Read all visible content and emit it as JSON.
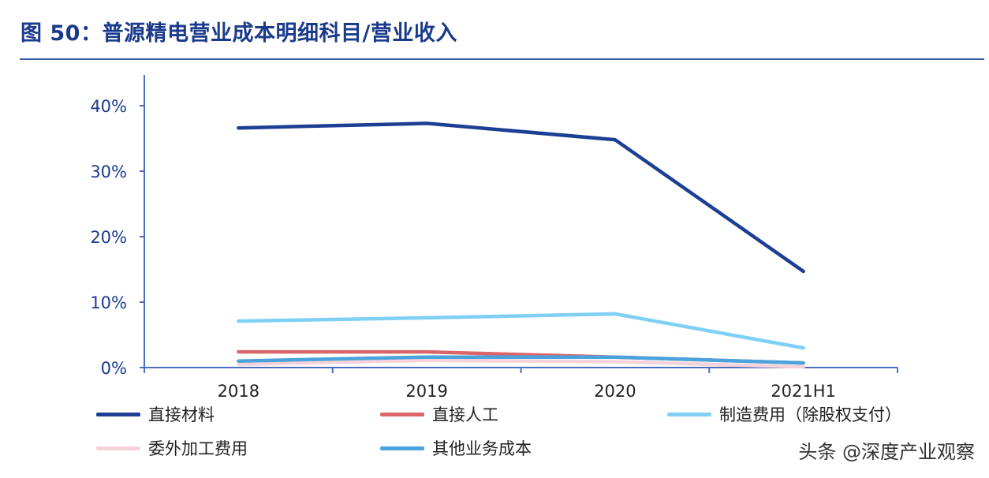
{
  "title": "图 50：普源精电营业成本明细科目/营业收入",
  "watermark": "头条 @深度产业观察",
  "chart_data": {
    "type": "line",
    "title": "图 50：普源精电营业成本明细科目/营业收入",
    "categories": [
      "2018",
      "2019",
      "2020",
      "2021H1"
    ],
    "ylim": [
      0,
      40
    ],
    "yticks": [
      "0%",
      "10%",
      "20%",
      "30%",
      "40%"
    ],
    "yunit": "%",
    "grid": false,
    "legend_placement": "bottom",
    "series": [
      {
        "name": "直接材料",
        "color": "#1c3f94",
        "values": [
          36.6,
          37.3,
          34.8,
          14.7
        ]
      },
      {
        "name": "直接人工",
        "color": "#d9676a",
        "values": [
          2.4,
          2.4,
          1.6,
          0.7
        ]
      },
      {
        "name": "制造费用（除股权支付）",
        "color": "#7fd0f5",
        "values": [
          7.1,
          7.6,
          8.2,
          3.0
        ]
      },
      {
        "name": "委外加工费用",
        "color": "#f6d3db",
        "values": [
          0.5,
          1.1,
          0.9,
          0.1
        ]
      },
      {
        "name": "其他业务成本",
        "color": "#4aa3dc",
        "values": [
          1.0,
          1.6,
          1.6,
          0.7
        ]
      }
    ]
  }
}
